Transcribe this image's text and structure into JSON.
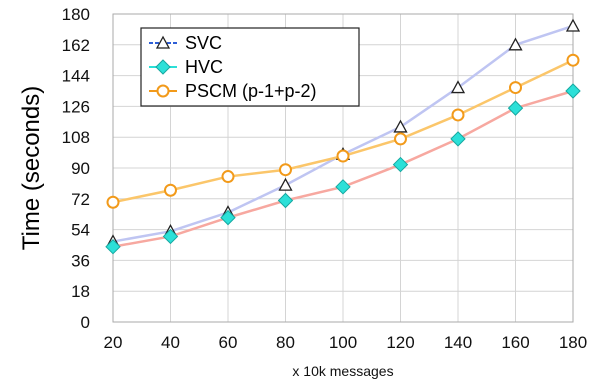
{
  "chart_data": {
    "type": "line",
    "xlabel": "x 10k messages",
    "ylabel": "Time (seconds)",
    "x": [
      20,
      40,
      60,
      80,
      100,
      120,
      140,
      160,
      180
    ],
    "xlim": [
      20,
      180
    ],
    "ylim": [
      0,
      180
    ],
    "y_ticks": [
      0,
      18,
      36,
      54,
      72,
      90,
      108,
      126,
      144,
      162,
      180
    ],
    "grid": true,
    "legend_position": "top-left",
    "series": [
      {
        "name": "SVC",
        "marker": "triangle",
        "color": "#bfc5f2",
        "marker_color": "#ffffff",
        "values": [
          47,
          53,
          64,
          80,
          98,
          114,
          137,
          162,
          173
        ]
      },
      {
        "name": "HVC",
        "marker": "diamond",
        "color": "#f7a8a0",
        "marker_color": "#2ce0d8",
        "values": [
          44,
          50,
          61,
          71,
          79,
          92,
          107,
          125,
          135
        ]
      },
      {
        "name": "PSCM (p-1+p-2)",
        "marker": "circle",
        "color": "#fbc66a",
        "marker_color": "#ffffff",
        "marker_edge": "#f29a1a",
        "values": [
          70,
          77,
          85,
          89,
          97,
          107,
          121,
          137,
          153
        ]
      }
    ]
  }
}
